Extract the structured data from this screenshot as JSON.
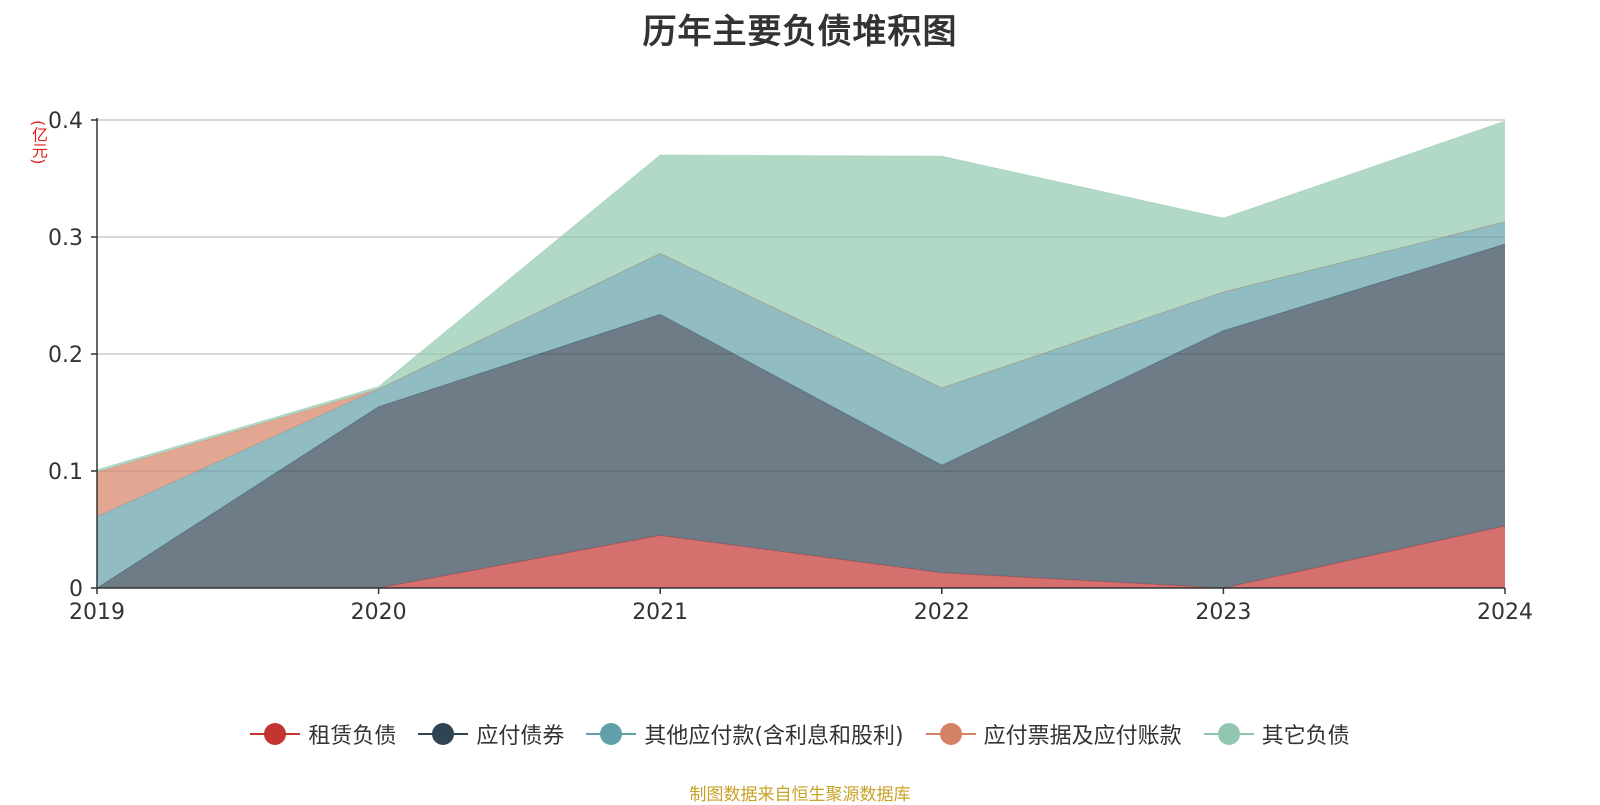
{
  "title": "历年主要负债堆积图",
  "unit": "(亿元)",
  "footer": "制图数据来自恒生聚源数据库",
  "chart_data": {
    "type": "area",
    "stacked": true,
    "title": "历年主要负债堆积图",
    "ylabel": "(亿元)",
    "x": [
      "2019",
      "2020",
      "2021",
      "2022",
      "2023",
      "2024"
    ],
    "ylim": [
      0,
      0.4
    ],
    "yticks": [
      0,
      0.1,
      0.2,
      0.3,
      0.4
    ],
    "ytick_labels": [
      "0",
      "0.1",
      "0.2",
      "0.3",
      "0.4"
    ],
    "grid": true,
    "legend_position": "bottom",
    "series": [
      {
        "name": "租赁负债",
        "color": "#c23531",
        "values": [
          0,
          0,
          0.045,
          0.013,
          0,
          0.053
        ]
      },
      {
        "name": "应付债券",
        "color": "#2f4554",
        "values": [
          0,
          0.155,
          0.189,
          0.092,
          0.22,
          0.241
        ]
      },
      {
        "name": "其他应付款(含利息和股利)",
        "color": "#61a0a8",
        "values": [
          0.061,
          0.015,
          0.052,
          0.066,
          0.033,
          0.019
        ]
      },
      {
        "name": "应付票据及应付账款",
        "color": "#d48265",
        "values": [
          0.038,
          0,
          0,
          0,
          0,
          0
        ]
      },
      {
        "name": "其它负债",
        "color": "#91c7ae",
        "values": [
          0.002,
          0.002,
          0.084,
          0.198,
          0.063,
          0.086
        ]
      }
    ]
  }
}
